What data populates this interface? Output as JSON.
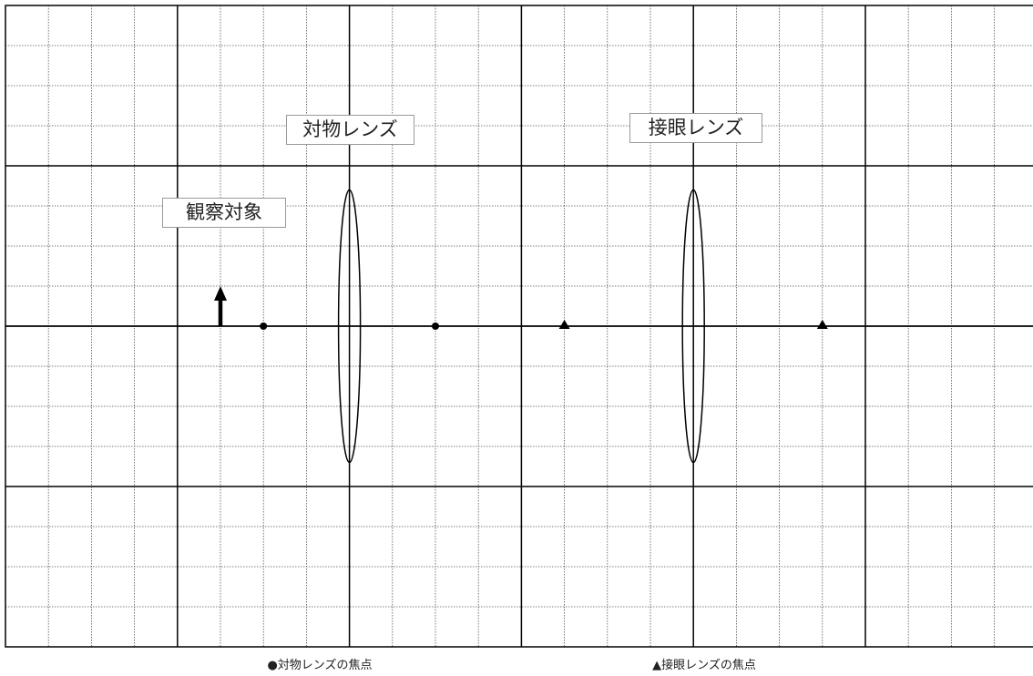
{
  "labels": {
    "objective_lens": "対物レンズ",
    "eyepiece_lens": "接眼レンズ",
    "observed_object": "観察対象"
  },
  "legend": {
    "objective_focus": "●対物レンズの焦点",
    "eyepiece_focus": "▲接眼レンズの焦点"
  },
  "grid": {
    "columns": 24,
    "rows": 16,
    "major_every": 4,
    "optical_axis_row": 8
  },
  "elements": {
    "object_arrow": {
      "x": 5,
      "height": 1
    },
    "objective_lens": {
      "x": 8,
      "half_height": 3.4
    },
    "eyepiece_lens": {
      "x": 16,
      "half_height": 3.4
    },
    "objective_focal_points": [
      6,
      10
    ],
    "eyepiece_focal_points": [
      13,
      19
    ]
  },
  "colors": {
    "line": "#000000",
    "minor_grid": "#555555",
    "label_border": "#9a9a9a"
  }
}
